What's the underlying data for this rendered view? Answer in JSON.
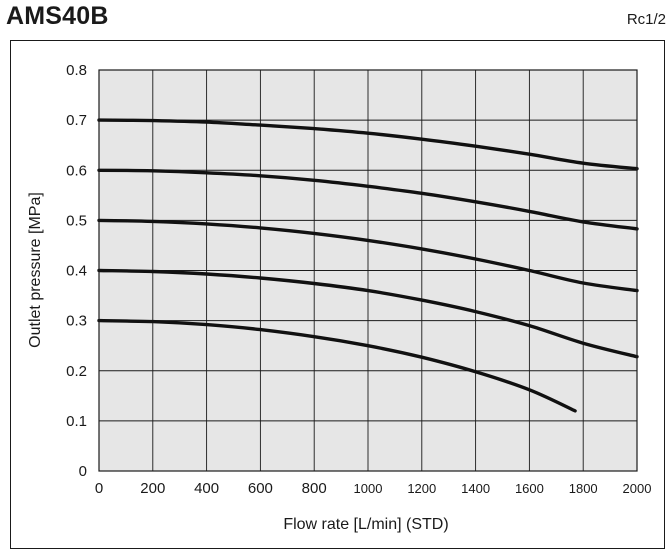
{
  "header": {
    "model": "AMS40B",
    "port_size": "Rc1/2"
  },
  "chart_data": {
    "type": "line",
    "title": "",
    "xlabel": "Flow rate [L/min] (STD)",
    "ylabel": "Outlet pressure [MPa]",
    "xlim": [
      0,
      2000
    ],
    "ylim": [
      0,
      0.8
    ],
    "x_ticks": [
      {
        "value": 0,
        "label": "0"
      },
      {
        "value": 200,
        "label": "200"
      },
      {
        "value": 400,
        "label": "400"
      },
      {
        "value": 600,
        "label": "600"
      },
      {
        "value": 800,
        "label": "800"
      },
      {
        "value": 1000,
        "label": "1000"
      },
      {
        "value": 1200,
        "label": "1200"
      },
      {
        "value": 1400,
        "label": "1400"
      },
      {
        "value": 1600,
        "label": "1600"
      },
      {
        "value": 1800,
        "label": "1800"
      },
      {
        "value": 2000,
        "label": "2000"
      }
    ],
    "y_ticks": [
      {
        "value": 0,
        "label": "0"
      },
      {
        "value": 0.1,
        "label": "0.1"
      },
      {
        "value": 0.2,
        "label": "0.2"
      },
      {
        "value": 0.3,
        "label": "0.3"
      },
      {
        "value": 0.4,
        "label": "0.4"
      },
      {
        "value": 0.5,
        "label": "0.5"
      },
      {
        "value": 0.6,
        "label": "0.6"
      },
      {
        "value": 0.7,
        "label": "0.7"
      },
      {
        "value": 0.8,
        "label": "0.8"
      }
    ],
    "grid": true,
    "colors": {
      "plot_background": "#e6e6e6",
      "line": "#111111",
      "grid": "#1a1a1a"
    },
    "series": [
      {
        "x": [
          0,
          200,
          400,
          600,
          800,
          1000,
          1200,
          1400,
          1600,
          1800,
          2000
        ],
        "y": [
          0.7,
          0.699,
          0.696,
          0.69,
          0.683,
          0.674,
          0.662,
          0.648,
          0.632,
          0.614,
          0.603
        ]
      },
      {
        "x": [
          0,
          200,
          400,
          600,
          800,
          1000,
          1200,
          1400,
          1600,
          1800,
          2000
        ],
        "y": [
          0.6,
          0.599,
          0.595,
          0.589,
          0.58,
          0.568,
          0.554,
          0.537,
          0.518,
          0.497,
          0.483
        ]
      },
      {
        "x": [
          0,
          200,
          400,
          600,
          800,
          1000,
          1200,
          1400,
          1600,
          1800,
          2000
        ],
        "y": [
          0.5,
          0.498,
          0.493,
          0.485,
          0.474,
          0.46,
          0.443,
          0.423,
          0.4,
          0.375,
          0.36
        ]
      },
      {
        "x": [
          0,
          200,
          400,
          600,
          800,
          1000,
          1200,
          1400,
          1600,
          1800,
          2000
        ],
        "y": [
          0.4,
          0.398,
          0.393,
          0.385,
          0.374,
          0.36,
          0.341,
          0.318,
          0.29,
          0.255,
          0.228
        ]
      },
      {
        "x": [
          0,
          200,
          400,
          600,
          800,
          1000,
          1200,
          1400,
          1600,
          1770
        ],
        "y": [
          0.3,
          0.298,
          0.292,
          0.282,
          0.268,
          0.25,
          0.227,
          0.198,
          0.162,
          0.12
        ]
      }
    ]
  }
}
